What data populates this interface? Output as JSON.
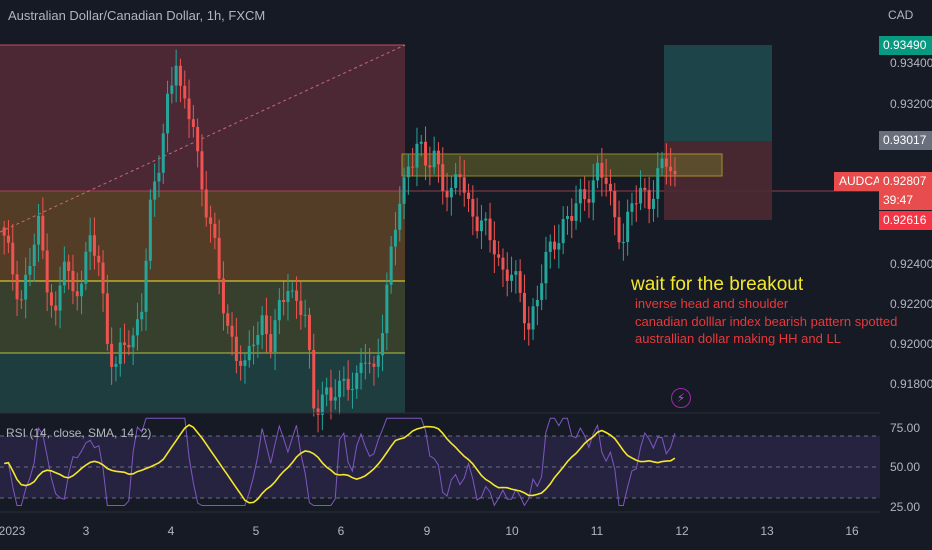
{
  "header": {
    "title": "Australian Dollar/Canadian Dollar, 1h, FXCM",
    "currency": "CAD"
  },
  "rsi": {
    "label": "RSI (14, close, SMA, 14, 2)",
    "ticks": [
      "75.00",
      "50.00",
      "25.00"
    ]
  },
  "price_axis": {
    "ticks": [
      "0.93400",
      "0.93200",
      "0.92400",
      "0.92200",
      "0.92000",
      "0.91800"
    ]
  },
  "badges": {
    "target": "0.93490",
    "entry": "0.93017",
    "symbol": "AUDCAD",
    "last": "0.92807",
    "countdown": "39:47",
    "stop": "0.92616"
  },
  "time_axis": {
    "labels": [
      "2023",
      "3",
      "4",
      "5",
      "6",
      "9",
      "10",
      "11",
      "12",
      "13",
      "16"
    ]
  },
  "annotations": {
    "main": "wait for the breakout",
    "lines": [
      "inverse head and shoulder",
      "canadian dolllar index bearish pattern spotted",
      "australlian dollar making HH and LL"
    ]
  },
  "colors": {
    "background": "#161a25",
    "up_candle": "#26a69a",
    "down_candle": "#ef5350",
    "rsi_line": "#7e57c2",
    "rsi_sma": "#f5e72a",
    "annotation_main": "#f5e72a",
    "annotation_sub": "#e8383b"
  },
  "icons": {
    "alert": "lightning-icon"
  },
  "chart_data": {
    "type": "candlestick",
    "title": "Australian Dollar/Canadian Dollar, 1h, FXCM",
    "interval": "1h",
    "y_range": [
      0.9167,
      0.936
    ],
    "last_price": 0.92807,
    "close_path": [
      [
        0,
        0.9248
      ],
      [
        2,
        0.9235
      ],
      [
        4,
        0.9222
      ],
      [
        6,
        0.9238
      ],
      [
        8,
        0.9255
      ],
      [
        10,
        0.9232
      ],
      [
        12,
        0.9212
      ],
      [
        14,
        0.924
      ],
      [
        16,
        0.9222
      ],
      [
        18,
        0.9235
      ],
      [
        20,
        0.9247
      ],
      [
        22,
        0.9238
      ],
      [
        24,
        0.9203
      ],
      [
        26,
        0.919
      ],
      [
        28,
        0.9198
      ],
      [
        30,
        0.9202
      ],
      [
        32,
        0.9222
      ],
      [
        34,
        0.9262
      ],
      [
        36,
        0.9284
      ],
      [
        38,
        0.9318
      ],
      [
        40,
        0.9337
      ],
      [
        41,
        0.9318
      ],
      [
        42,
        0.931
      ],
      [
        44,
        0.9307
      ],
      [
        46,
        0.9275
      ],
      [
        48,
        0.9255
      ],
      [
        50,
        0.923
      ],
      [
        52,
        0.921
      ],
      [
        54,
        0.9195
      ],
      [
        56,
        0.9185
      ],
      [
        58,
        0.9205
      ],
      [
        60,
        0.9212
      ],
      [
        62,
        0.9198
      ],
      [
        64,
        0.9215
      ],
      [
        66,
        0.9232
      ],
      [
        68,
        0.9218
      ],
      [
        70,
        0.9212
      ],
      [
        72,
        0.917
      ],
      [
        74,
        0.9178
      ],
      [
        76,
        0.9172
      ],
      [
        78,
        0.9178
      ],
      [
        80,
        0.9185
      ],
      [
        82,
        0.9182
      ],
      [
        84,
        0.9192
      ],
      [
        86,
        0.9186
      ],
      [
        88,
        0.9212
      ],
      [
        90,
        0.924
      ],
      [
        92,
        0.9268
      ],
      [
        94,
        0.9286
      ],
      [
        96,
        0.9296
      ],
      [
        98,
        0.9282
      ],
      [
        100,
        0.9292
      ],
      [
        102,
        0.9278
      ],
      [
        104,
        0.9268
      ],
      [
        106,
        0.9282
      ],
      [
        108,
        0.9268
      ],
      [
        110,
        0.9258
      ],
      [
        112,
        0.9252
      ],
      [
        114,
        0.9248
      ],
      [
        116,
        0.9235
      ],
      [
        118,
        0.9232
      ],
      [
        120,
        0.9222
      ],
      [
        122,
        0.921
      ],
      [
        124,
        0.9222
      ],
      [
        126,
        0.9238
      ],
      [
        128,
        0.925
      ],
      [
        130,
        0.9258
      ],
      [
        132,
        0.926
      ],
      [
        134,
        0.9268
      ],
      [
        136,
        0.9275
      ],
      [
        138,
        0.9282
      ],
      [
        140,
        0.9276
      ],
      [
        142,
        0.926
      ],
      [
        144,
        0.9252
      ],
      [
        146,
        0.9264
      ],
      [
        148,
        0.9272
      ],
      [
        150,
        0.927
      ],
      [
        152,
        0.928
      ],
      [
        154,
        0.9285
      ],
      [
        156,
        0.9281
      ]
    ],
    "zones": [
      {
        "name": "resistance",
        "y": [
          0.92851,
          0.9303
        ],
        "color": "#f5e72a"
      },
      {
        "name": "target",
        "y": [
          0.93017,
          0.9349
        ],
        "color": "#26a69a"
      },
      {
        "name": "stop",
        "y": [
          0.92616,
          0.93017
        ],
        "color": "#ef5350"
      }
    ],
    "rsi": {
      "y_range": [
        20,
        80
      ],
      "bands": [
        70,
        50,
        30
      ]
    },
    "grid": false
  }
}
